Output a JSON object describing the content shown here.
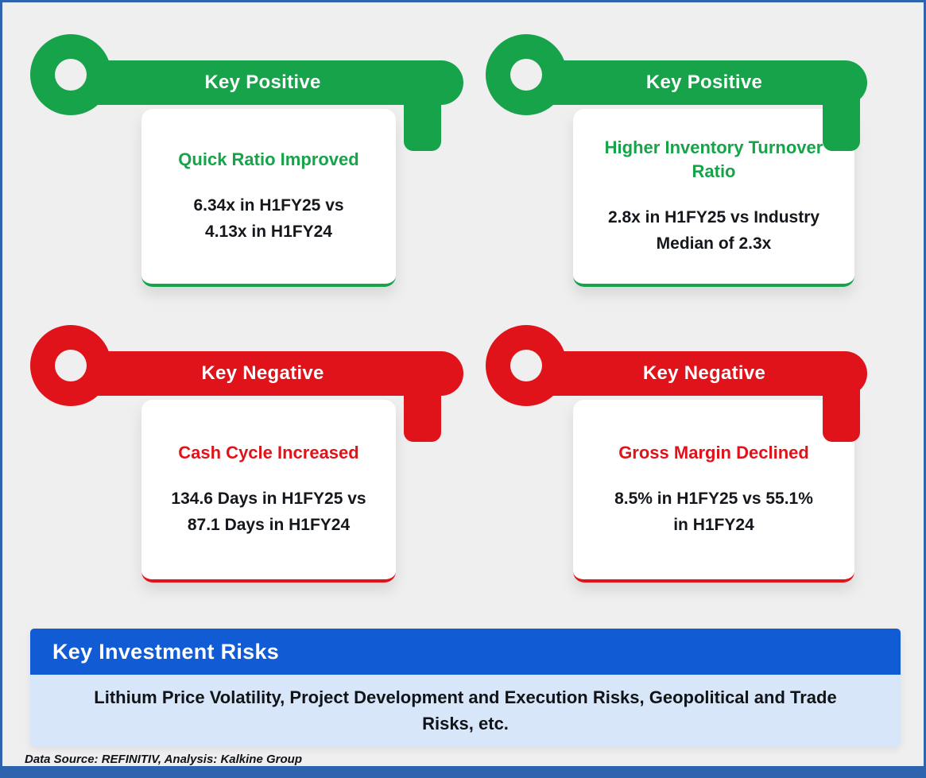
{
  "cards": [
    {
      "type": "positive",
      "header": "Key Positive",
      "title": "Quick Ratio Improved",
      "line1": "6.34x in H1FY25 vs",
      "line2": "4.13x in H1FY24"
    },
    {
      "type": "positive",
      "header": "Key Positive",
      "title": "Higher Inventory Turnover Ratio",
      "line1": "2.8x in H1FY25 vs Industry",
      "line2": "Median of 2.3x"
    },
    {
      "type": "negative",
      "header": "Key Negative",
      "title": "Cash Cycle Increased",
      "line1": "134.6 Days in H1FY25 vs",
      "line2": "87.1 Days in H1FY24"
    },
    {
      "type": "negative",
      "header": "Key Negative",
      "title": "Gross Margin Declined",
      "line1": "8.5% in H1FY25 vs 55.1%",
      "line2": "in H1FY24"
    }
  ],
  "risks": {
    "header": "Key Investment Risks",
    "body": "Lithium Price Volatility, Project Development and Execution Risks, Geopolitical and Trade Risks,  etc."
  },
  "footer": {
    "text": "Data Source: REFINITIV, Analysis: Kalkine Group"
  },
  "colors": {
    "positive": "#16A34A",
    "negative": "#E0121A",
    "banner": "#115BD5",
    "banner_light": "#D8E6F9",
    "border": "#2E63AE",
    "background": "#F0EFF0"
  }
}
